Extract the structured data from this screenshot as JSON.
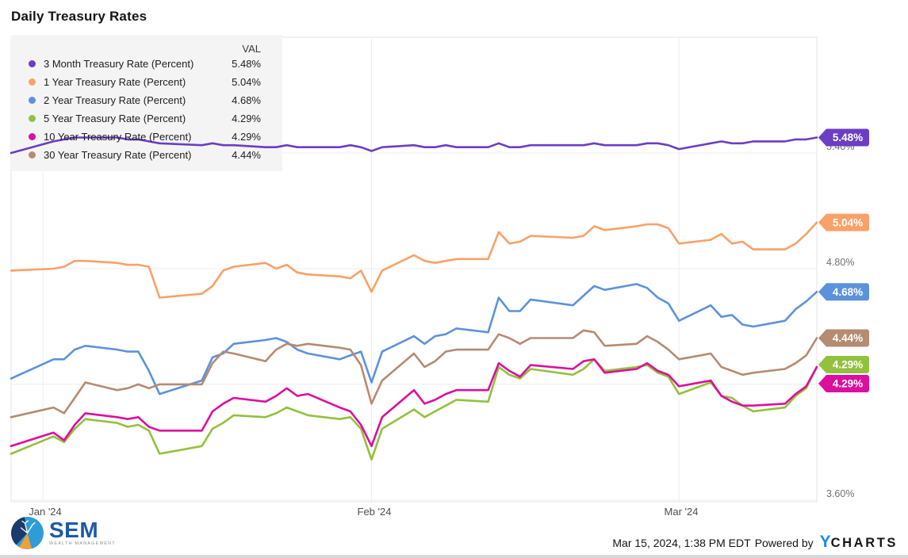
{
  "title": "Daily Treasury Rates",
  "legend": {
    "header": "VAL",
    "items": [
      {
        "label": "3 Month Treasury Rate (Percent)",
        "value": "5.48%",
        "color": "#6B3EC3"
      },
      {
        "label": "1 Year Treasury Rate (Percent)",
        "value": "5.04%",
        "color": "#F9A168"
      },
      {
        "label": "2 Year Treasury Rate (Percent)",
        "value": "4.68%",
        "color": "#5C92DB"
      },
      {
        "label": "5 Year Treasury Rate (Percent)",
        "value": "4.29%",
        "color": "#92C13D"
      },
      {
        "label": "10 Year Treasury Rate (Percent)",
        "value": "4.29%",
        "color": "#DC0E9E"
      },
      {
        "label": "30 Year Treasury Rate (Percent)",
        "value": "4.44%",
        "color": "#B58B71"
      }
    ]
  },
  "footer": {
    "timestamp": "Mar 15, 2024, 1:38 PM EDT",
    "powered_by": "Powered by",
    "ycharts_y": "Y",
    "ycharts_rest": "CHARTS",
    "sem_name": "SEM",
    "sem_sub": "WEALTH MANAGEMENT"
  },
  "chart_data": {
    "type": "line",
    "title": "Daily Treasury Rates",
    "legend_position": "top-left",
    "grid": true,
    "ylim": [
      3.59,
      6.0
    ],
    "x_axis": {
      "start_date": "Dec 29, 2023",
      "end_date": "Mar 14, 2024",
      "tick_labels": [
        "Jan '24",
        "Feb '24",
        "Mar '24"
      ],
      "gridline_day_offsets": [
        3,
        34,
        63
      ]
    },
    "y_axis": {
      "unit": "percent",
      "gridline_values": [
        6.0,
        5.4,
        4.8,
        4.2,
        3.6
      ],
      "ticks": [
        {
          "label": "5.40%",
          "value": 5.4
        },
        {
          "label": "4.80%",
          "value": 4.8
        },
        {
          "label": "3.60%",
          "value": 3.6
        }
      ]
    },
    "dates": [
      "Dec 29",
      "Jan 2",
      "Jan 3",
      "Jan 4",
      "Jan 5",
      "Jan 8",
      "Jan 9",
      "Jan 10",
      "Jan 11",
      "Jan 12",
      "Jan 16",
      "Jan 17",
      "Jan 18",
      "Jan 19",
      "Jan 22",
      "Jan 23",
      "Jan 24",
      "Jan 25",
      "Jan 26",
      "Jan 29",
      "Jan 30",
      "Jan 31",
      "Feb 1",
      "Feb 2",
      "Feb 5",
      "Feb 6",
      "Feb 7",
      "Feb 8",
      "Feb 9",
      "Feb 12",
      "Feb 13",
      "Feb 14",
      "Feb 15",
      "Feb 16",
      "Feb 20",
      "Feb 21",
      "Feb 22",
      "Feb 23",
      "Feb 26",
      "Feb 27",
      "Feb 28",
      "Feb 29",
      "Mar 1",
      "Mar 4",
      "Mar 5",
      "Mar 6",
      "Mar 7",
      "Mar 8",
      "Mar 11",
      "Mar 12",
      "Mar 13",
      "Mar 14"
    ],
    "day_offsets": [
      0,
      4,
      5,
      6,
      7,
      10,
      11,
      12,
      13,
      14,
      18,
      19,
      20,
      21,
      24,
      25,
      26,
      27,
      28,
      31,
      32,
      33,
      34,
      35,
      38,
      39,
      40,
      41,
      42,
      45,
      46,
      47,
      48,
      49,
      53,
      54,
      55,
      56,
      59,
      60,
      61,
      62,
      63,
      66,
      67,
      68,
      69,
      70,
      73,
      74,
      75,
      76
    ],
    "series": [
      {
        "name": "3 Month Treasury Rate (Percent)",
        "slug": "3-month",
        "color": "#6B3EC3",
        "end_label": "5.48%",
        "badge_dy": 0,
        "values": [
          5.4,
          5.46,
          5.47,
          5.48,
          5.48,
          5.48,
          5.47,
          5.47,
          5.46,
          5.45,
          5.44,
          5.45,
          5.44,
          5.44,
          5.43,
          5.43,
          5.44,
          5.43,
          5.43,
          5.43,
          5.44,
          5.43,
          5.41,
          5.43,
          5.44,
          5.43,
          5.43,
          5.44,
          5.43,
          5.43,
          5.45,
          5.43,
          5.43,
          5.44,
          5.44,
          5.44,
          5.45,
          5.44,
          5.44,
          5.45,
          5.45,
          5.44,
          5.42,
          5.45,
          5.46,
          5.45,
          5.45,
          5.46,
          5.46,
          5.47,
          5.47,
          5.48
        ]
      },
      {
        "name": "1 Year Treasury Rate (Percent)",
        "slug": "1-year",
        "color": "#F9A168",
        "end_label": "5.04%",
        "badge_dy": 0,
        "values": [
          4.79,
          4.8,
          4.81,
          4.84,
          4.84,
          4.83,
          4.82,
          4.82,
          4.81,
          4.65,
          4.67,
          4.71,
          4.79,
          4.81,
          4.83,
          4.8,
          4.82,
          4.78,
          4.77,
          4.76,
          4.75,
          4.79,
          4.68,
          4.79,
          4.87,
          4.84,
          4.83,
          4.84,
          4.85,
          4.85,
          4.99,
          4.93,
          4.94,
          4.97,
          4.96,
          4.97,
          5.02,
          5.0,
          5.02,
          5.03,
          5.03,
          5.01,
          4.93,
          4.95,
          4.98,
          4.93,
          4.94,
          4.9,
          4.9,
          4.93,
          4.98,
          5.04
        ]
      },
      {
        "name": "2 Year Treasury Rate (Percent)",
        "slug": "2-year",
        "color": "#5C92DB",
        "end_label": "4.68%",
        "badge_dy": 0,
        "values": [
          4.23,
          4.33,
          4.33,
          4.38,
          4.4,
          4.38,
          4.37,
          4.37,
          4.27,
          4.15,
          4.22,
          4.34,
          4.36,
          4.41,
          4.43,
          4.44,
          4.42,
          4.38,
          4.36,
          4.33,
          4.35,
          4.37,
          4.21,
          4.37,
          4.45,
          4.41,
          4.45,
          4.46,
          4.49,
          4.47,
          4.65,
          4.58,
          4.58,
          4.64,
          4.61,
          4.66,
          4.71,
          4.69,
          4.72,
          4.7,
          4.65,
          4.62,
          4.53,
          4.61,
          4.55,
          4.56,
          4.51,
          4.5,
          4.53,
          4.59,
          4.63,
          4.68
        ]
      },
      {
        "name": "5 Year Treasury Rate (Percent)",
        "slug": "5-year",
        "color": "#92C13D",
        "end_label": "4.29%",
        "badge_dy": -3,
        "values": [
          3.84,
          3.93,
          3.9,
          3.97,
          4.02,
          4.0,
          3.98,
          3.99,
          3.96,
          3.84,
          3.88,
          3.97,
          4.0,
          4.04,
          4.03,
          4.05,
          4.08,
          4.06,
          4.04,
          4.02,
          4.03,
          3.97,
          3.81,
          3.97,
          4.07,
          4.03,
          4.06,
          4.09,
          4.12,
          4.11,
          4.29,
          4.25,
          4.23,
          4.28,
          4.25,
          4.28,
          4.33,
          4.27,
          4.29,
          4.3,
          4.26,
          4.24,
          4.15,
          4.21,
          4.14,
          4.13,
          4.09,
          4.06,
          4.08,
          4.14,
          4.18,
          4.29
        ]
      },
      {
        "name": "10 Year Treasury Rate (Percent)",
        "slug": "10-year",
        "color": "#DC0E9E",
        "end_label": "4.29%",
        "badge_dy": 21,
        "values": [
          3.88,
          3.95,
          3.91,
          3.99,
          4.05,
          4.03,
          4.02,
          4.03,
          3.98,
          3.96,
          3.96,
          4.06,
          4.1,
          4.13,
          4.11,
          4.14,
          4.18,
          4.14,
          4.15,
          4.08,
          4.06,
          3.99,
          3.88,
          4.03,
          4.17,
          4.1,
          4.12,
          4.15,
          4.17,
          4.17,
          4.31,
          4.27,
          4.24,
          4.3,
          4.28,
          4.32,
          4.33,
          4.26,
          4.28,
          4.31,
          4.27,
          4.25,
          4.19,
          4.22,
          4.14,
          4.11,
          4.09,
          4.09,
          4.1,
          4.15,
          4.19,
          4.29
        ]
      },
      {
        "name": "30 Year Treasury Rate (Percent)",
        "slug": "30-year",
        "color": "#B58B71",
        "end_label": "4.44%",
        "badge_dy": 0,
        "values": [
          4.03,
          4.08,
          4.05,
          4.13,
          4.21,
          4.17,
          4.18,
          4.2,
          4.18,
          4.2,
          4.2,
          4.31,
          4.37,
          4.36,
          4.32,
          4.38,
          4.41,
          4.4,
          4.41,
          4.39,
          4.38,
          4.3,
          4.1,
          4.22,
          4.36,
          4.29,
          4.32,
          4.37,
          4.38,
          4.38,
          4.46,
          4.44,
          4.41,
          4.44,
          4.44,
          4.48,
          4.47,
          4.4,
          4.41,
          4.45,
          4.42,
          4.38,
          4.33,
          4.36,
          4.29,
          4.27,
          4.25,
          4.26,
          4.28,
          4.31,
          4.35,
          4.44
        ]
      }
    ]
  }
}
